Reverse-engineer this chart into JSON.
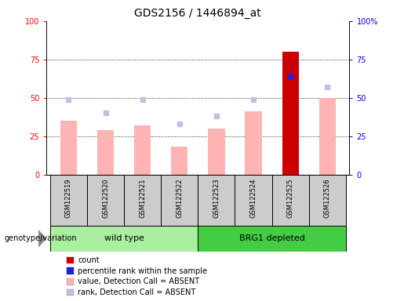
{
  "title": "GDS2156 / 1446894_at",
  "samples": [
    "GSM122519",
    "GSM122520",
    "GSM122521",
    "GSM122522",
    "GSM122523",
    "GSM122524",
    "GSM122525",
    "GSM122526"
  ],
  "value_absent": [
    35,
    29,
    32,
    18,
    30,
    41,
    null,
    50
  ],
  "rank_absent": [
    49,
    40,
    49,
    33,
    38,
    49,
    null,
    57
  ],
  "count_present": [
    null,
    null,
    null,
    null,
    null,
    null,
    80,
    null
  ],
  "rank_present": [
    null,
    null,
    null,
    null,
    null,
    null,
    64,
    null
  ],
  "ylim": [
    0,
    100
  ],
  "left_yticks": [
    0,
    25,
    50,
    75,
    100
  ],
  "right_ytick_labels": [
    "0",
    "25",
    "50",
    "75",
    "100%"
  ],
  "bar_width": 0.45,
  "color_count": "#cc0000",
  "color_rank_present": "#2222cc",
  "color_value_absent": "#ffb3b3",
  "color_rank_absent": "#c0c0e0",
  "group_color_wild": "#aaeea0",
  "group_color_brg": "#44cc44",
  "tick_area_color": "#cccccc",
  "legend_items": [
    {
      "label": "count",
      "color": "#cc0000"
    },
    {
      "label": "percentile rank within the sample",
      "color": "#2222cc"
    },
    {
      "label": "value, Detection Call = ABSENT",
      "color": "#ffb3b3"
    },
    {
      "label": "rank, Detection Call = ABSENT",
      "color": "#c0c0e0"
    }
  ],
  "genotype_label": "genotype/variation"
}
